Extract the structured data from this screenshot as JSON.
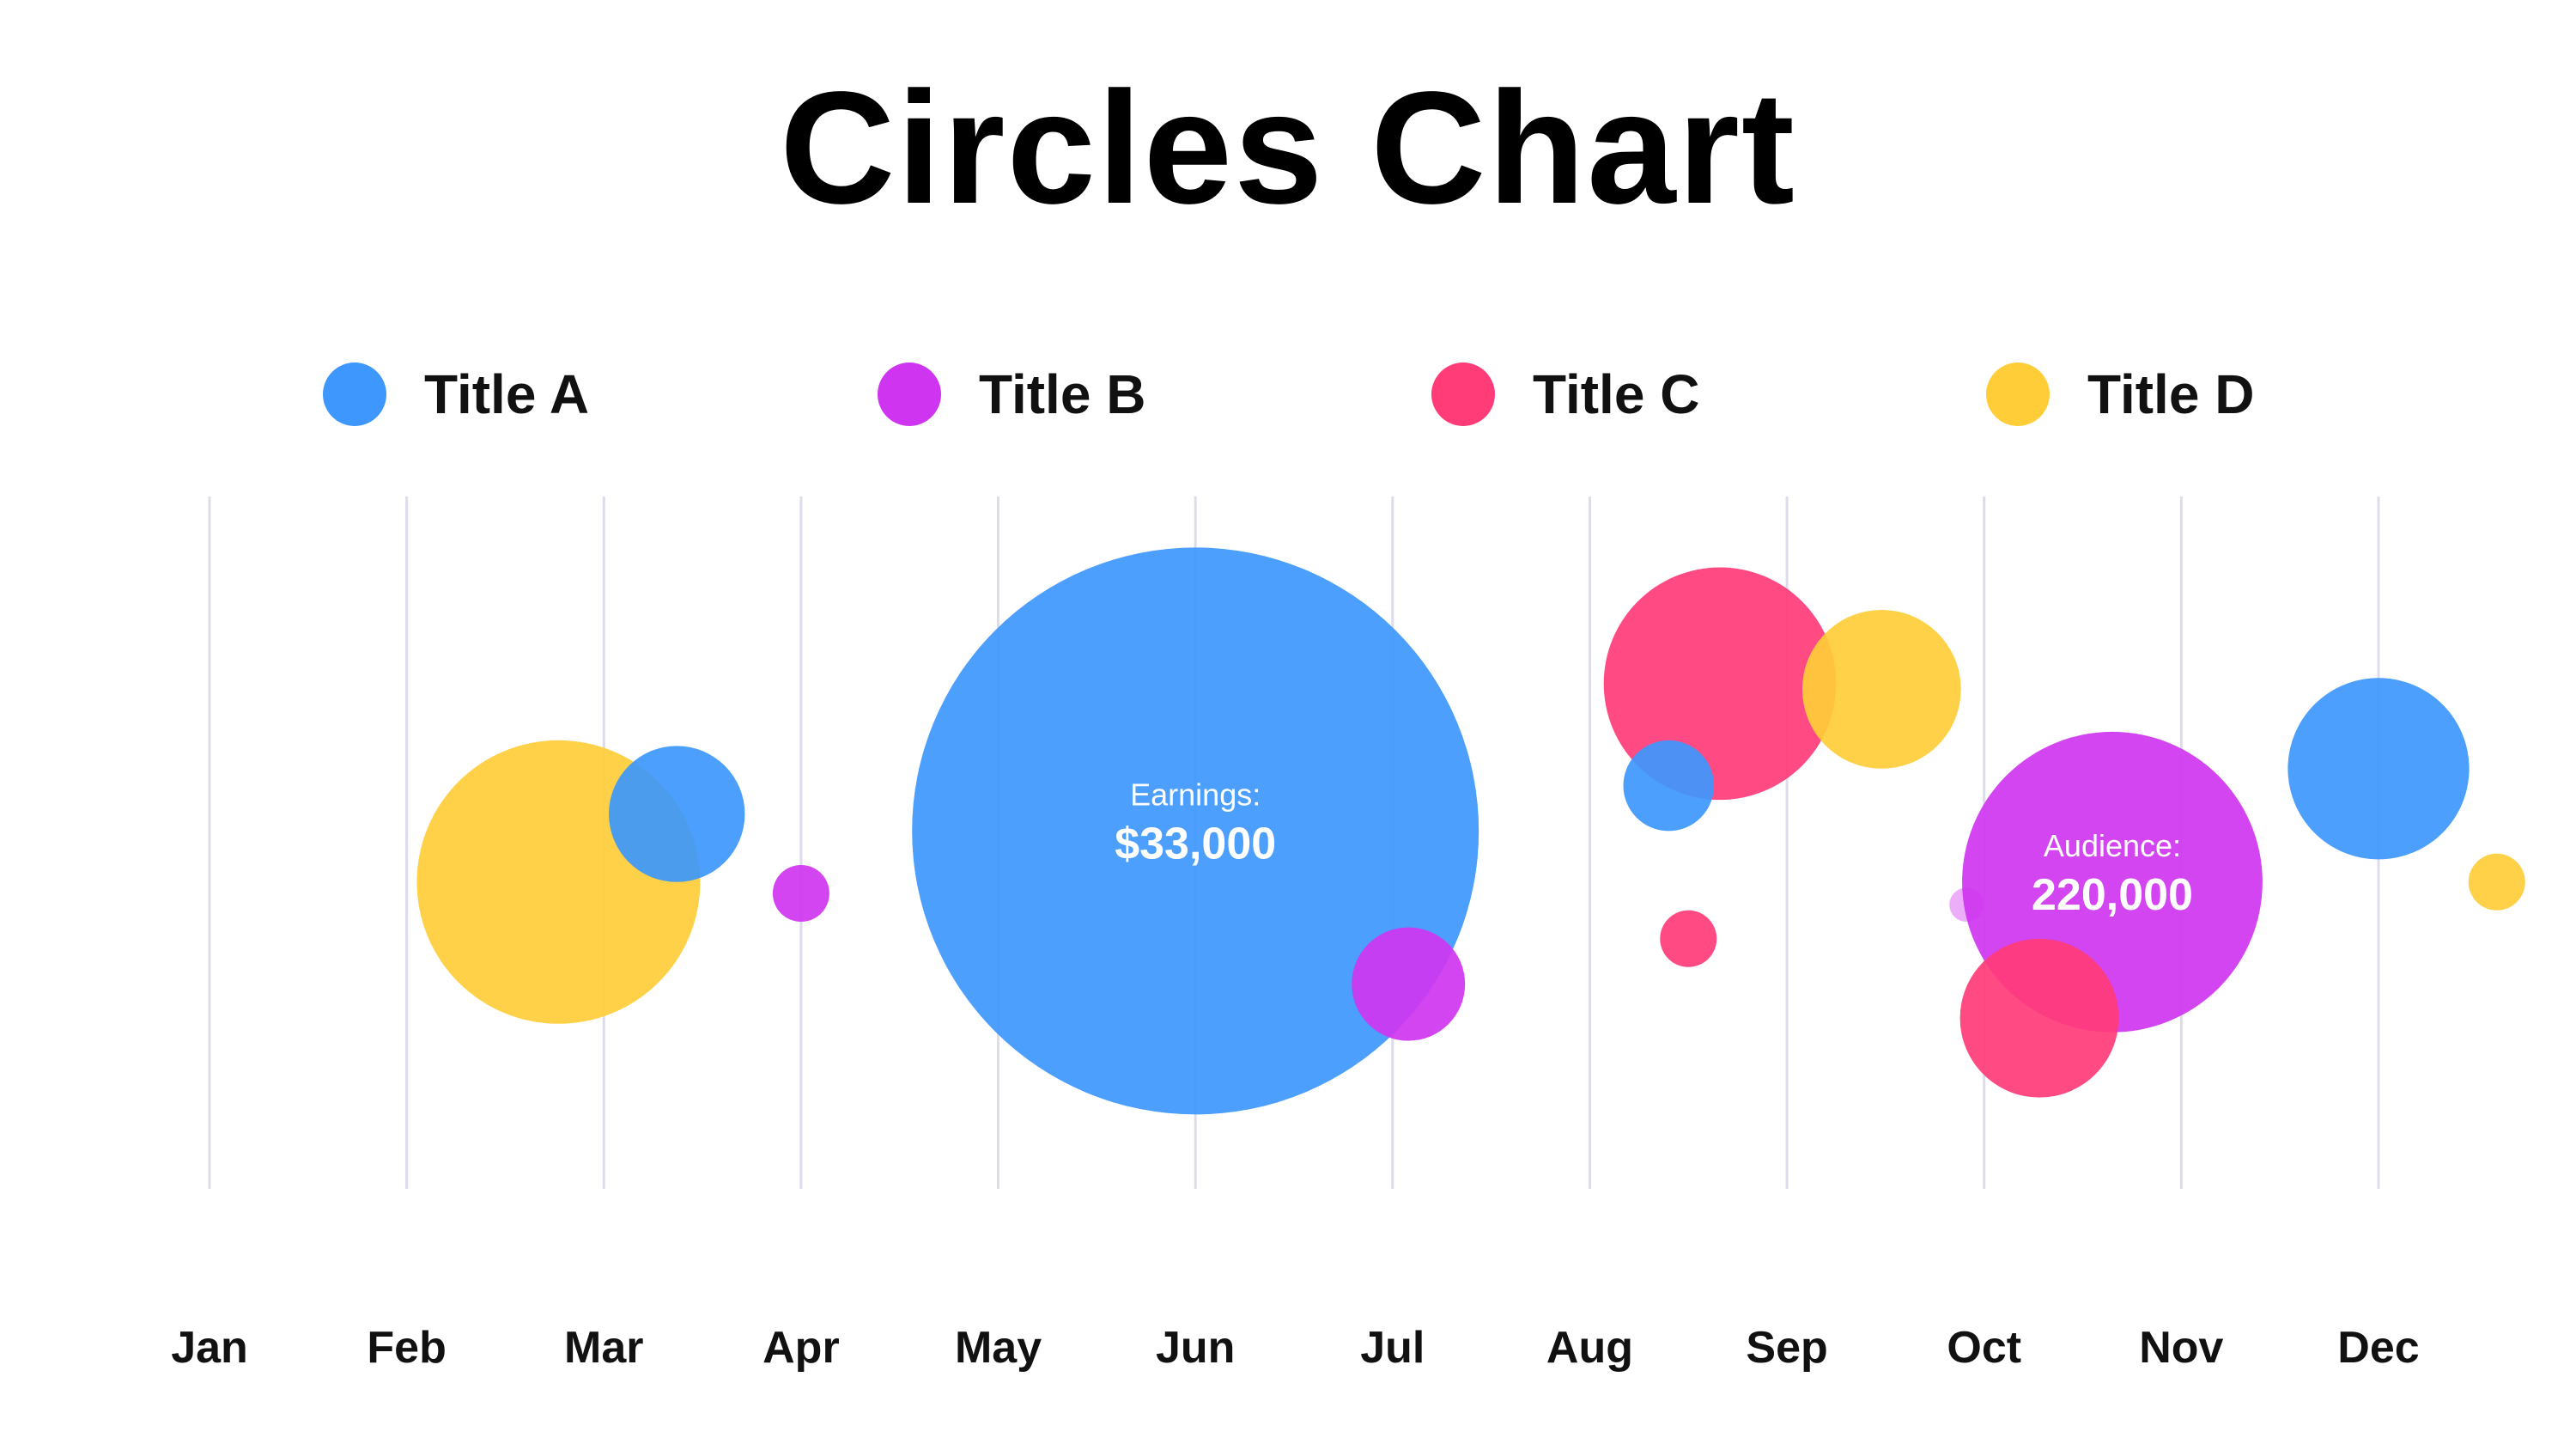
{
  "chart_data": {
    "type": "scatter",
    "title": "Circles Chart",
    "categories": [
      "Jan",
      "Feb",
      "Mar",
      "Apr",
      "May",
      "Jun",
      "Jul",
      "Aug",
      "Sep",
      "Oct",
      "Nov",
      "Dec"
    ],
    "legend_position": "top",
    "grid": "vertical",
    "series": [
      {
        "name": "Title A",
        "color": "#3d97fd",
        "points": [
          {
            "x": 2.37,
            "y": 0.54,
            "size": 0.24
          },
          {
            "x": 5.0,
            "y": 0.51,
            "size": 1.0
          },
          {
            "x": 7.4,
            "y": 0.59,
            "size": 0.16
          },
          {
            "x": 11.0,
            "y": 0.62,
            "size": 0.32
          }
        ]
      },
      {
        "name": "Title B",
        "color": "#cf35f0",
        "points": [
          {
            "x": 3.0,
            "y": 0.4,
            "size": 0.1
          },
          {
            "x": 6.08,
            "y": 0.24,
            "size": 0.2
          },
          {
            "x": 8.91,
            "y": 0.38,
            "size": 0.06
          },
          {
            "x": 9.65,
            "y": 0.42,
            "size": 0.53
          }
        ]
      },
      {
        "name": "Title C",
        "color": "#ff3b78",
        "points": [
          {
            "x": 7.5,
            "y": 0.32,
            "size": 0.1
          },
          {
            "x": 7.66,
            "y": 0.77,
            "size": 0.41
          },
          {
            "x": 9.28,
            "y": 0.18,
            "size": 0.28
          }
        ]
      },
      {
        "name": "Title D",
        "color": "#ffcd38",
        "points": [
          {
            "x": 1.77,
            "y": 0.42,
            "size": 0.5
          },
          {
            "x": 8.48,
            "y": 0.76,
            "size": 0.28
          },
          {
            "x": 11.6,
            "y": 0.42,
            "size": 0.1
          }
        ]
      }
    ],
    "annotations": [
      {
        "series": "Title A",
        "label": "Earnings:",
        "value": "$33,000"
      },
      {
        "series": "Title B",
        "label": "Audience:",
        "value": "220,000"
      }
    ]
  }
}
